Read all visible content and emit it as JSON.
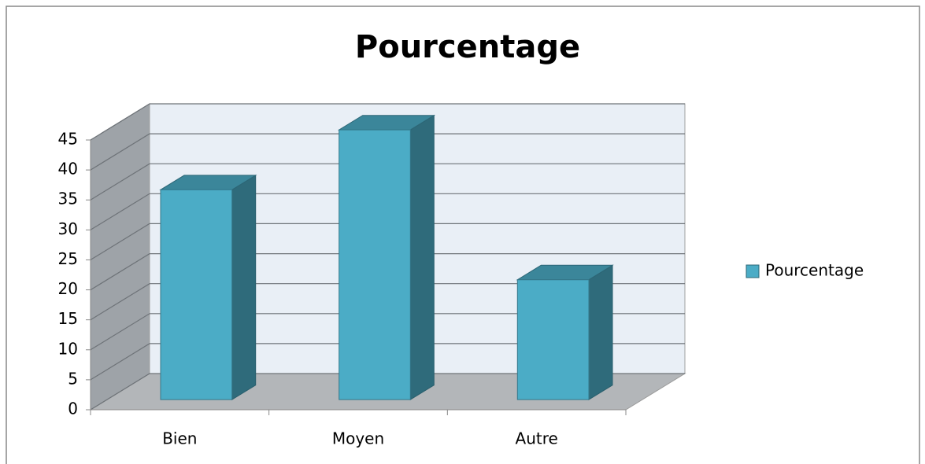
{
  "chart_data": {
    "type": "bar3d",
    "title": "Pourcentage",
    "categories": [
      "Bien",
      "Moyen",
      "Autre"
    ],
    "series": [
      {
        "name": "Pourcentage",
        "color": "#4bacc6",
        "values": [
          35,
          45,
          20
        ]
      }
    ],
    "ylim": [
      0,
      45
    ],
    "yticks": [
      0,
      5,
      10,
      15,
      20,
      25,
      30,
      35,
      40,
      45
    ],
    "grid": true,
    "legend": "right"
  }
}
